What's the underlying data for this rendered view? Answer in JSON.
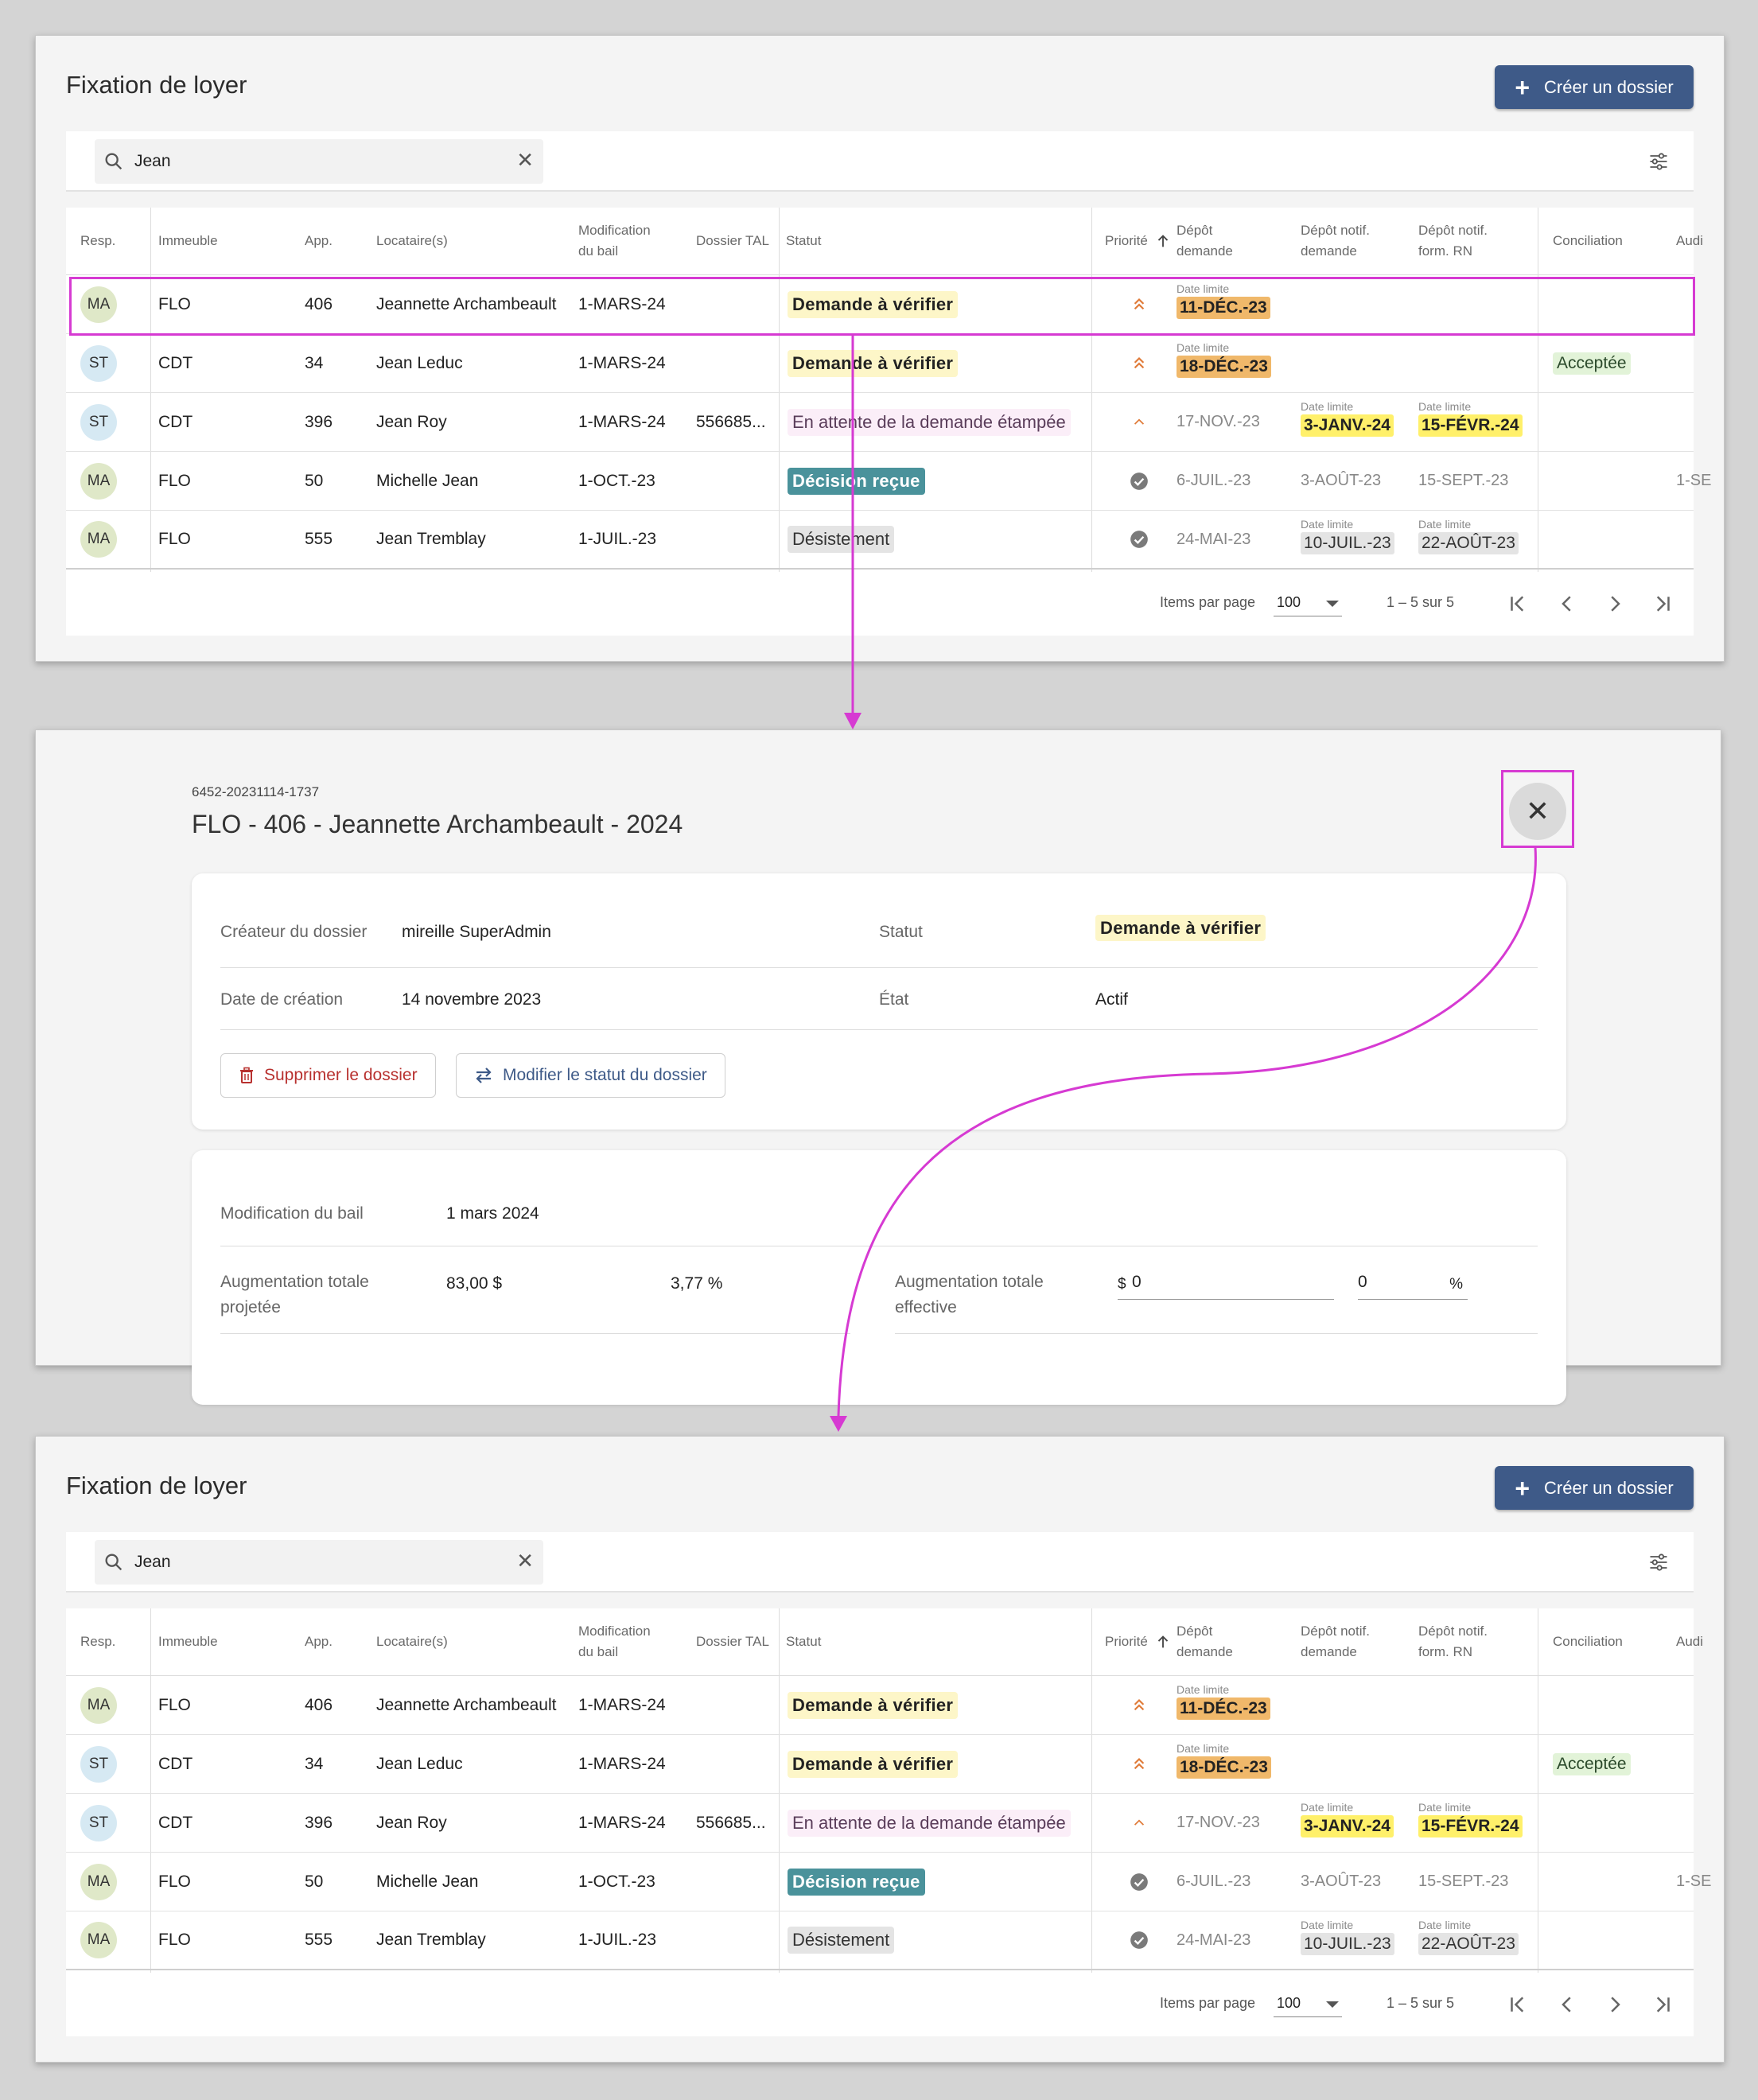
{
  "colors": {
    "accent": "#3e5a88",
    "highlight": "#d63ad2",
    "orange_chip": "#f0b86a",
    "yellow_chip": "#fff06a"
  },
  "list": {
    "title": "Fixation de loyer",
    "create_label": "Créer un dossier",
    "search_value": "Jean",
    "headers": {
      "resp": "Resp.",
      "immeuble": "Immeuble",
      "app": "App.",
      "locataires": "Locataire(s)",
      "mod_bail_1": "Modification",
      "mod_bail_2": "du bail",
      "dossier_tal": "Dossier TAL",
      "statut": "Statut",
      "priorite": "Priorité",
      "depot_demande_1": "Dépôt",
      "depot_demande_2": "demande",
      "depot_notif_1": "Dépôt notif.",
      "depot_notif_2": "demande",
      "depot_rn_1": "Dépôt notif.",
      "depot_rn_2": "form. RN",
      "conciliation": "Conciliation",
      "audience": "Audi"
    },
    "deadline_label": "Date limite",
    "rows": [
      {
        "resp": "MA",
        "immeuble": "FLO",
        "app": "406",
        "locataire": "Jeannette Archambeault",
        "mod_bail": "1-MARS-24",
        "dossier_tal": "",
        "statut": "Demande à vérifier",
        "priority": "high",
        "depot_demande": "11-DÉC.-23",
        "depot_notif": "",
        "depot_rn": "",
        "conciliation": "",
        "audience": ""
      },
      {
        "resp": "ST",
        "immeuble": "CDT",
        "app": "34",
        "locataire": "Jean Leduc",
        "mod_bail": "1-MARS-24",
        "dossier_tal": "",
        "statut": "Demande à vérifier",
        "priority": "high",
        "depot_demande": "18-DÉC.-23",
        "depot_notif": "",
        "depot_rn": "",
        "conciliation": "Acceptée",
        "audience": ""
      },
      {
        "resp": "ST",
        "immeuble": "CDT",
        "app": "396",
        "locataire": "Jean Roy",
        "mod_bail": "1-MARS-24",
        "dossier_tal": "556685...",
        "statut": "En attente de la demande étampée",
        "priority": "medium",
        "depot_demande": "17-NOV.-23",
        "depot_notif": "3-JANV.-24",
        "depot_rn": "15-FÉVR.-24",
        "conciliation": "",
        "audience": ""
      },
      {
        "resp": "MA",
        "immeuble": "FLO",
        "app": "50",
        "locataire": "Michelle Jean",
        "mod_bail": "1-OCT.-23",
        "dossier_tal": "",
        "statut": "Décision reçue",
        "priority": "done",
        "depot_demande": "6-JUIL.-23",
        "depot_notif": "3-AOÛT-23",
        "depot_rn": "15-SEPT.-23",
        "conciliation": "",
        "audience": "1-SE"
      },
      {
        "resp": "MA",
        "immeuble": "FLO",
        "app": "555",
        "locataire": "Jean Tremblay",
        "mod_bail": "1-JUIL.-23",
        "dossier_tal": "",
        "statut": "Désistement",
        "priority": "done",
        "depot_demande": "24-MAI-23",
        "depot_notif": "10-JUIL.-23",
        "depot_rn": "22-AOÛT-23",
        "conciliation": "",
        "audience": ""
      }
    ],
    "pager": {
      "items_label": "Items par page",
      "items_value": "100",
      "range": "1 – 5 sur 5"
    }
  },
  "detail": {
    "case_id": "6452-20231114-1737",
    "title": "FLO - 406 - Jeannette Archambeault - 2024",
    "creator_label": "Créateur du dossier",
    "creator_value": "mireille SuperAdmin",
    "status_label": "Statut",
    "status_value": "Demande à vérifier",
    "created_label": "Date de création",
    "created_value": "14 novembre 2023",
    "state_label": "État",
    "state_value": "Actif",
    "delete_label": "Supprimer le dossier",
    "modify_label": "Modifier le statut du dossier",
    "lease_label": "Modification du bail",
    "lease_value": "1 mars 2024",
    "proj_label_1": "Augmentation totale",
    "proj_label_2": "projetée",
    "proj_amount": "83,00 $",
    "proj_pct": "3,77 %",
    "eff_label_1": "Augmentation totale",
    "eff_label_2": "effective",
    "eff_prefix": "$",
    "eff_amount": "0",
    "eff_pct": "0",
    "eff_suffix": "%"
  }
}
